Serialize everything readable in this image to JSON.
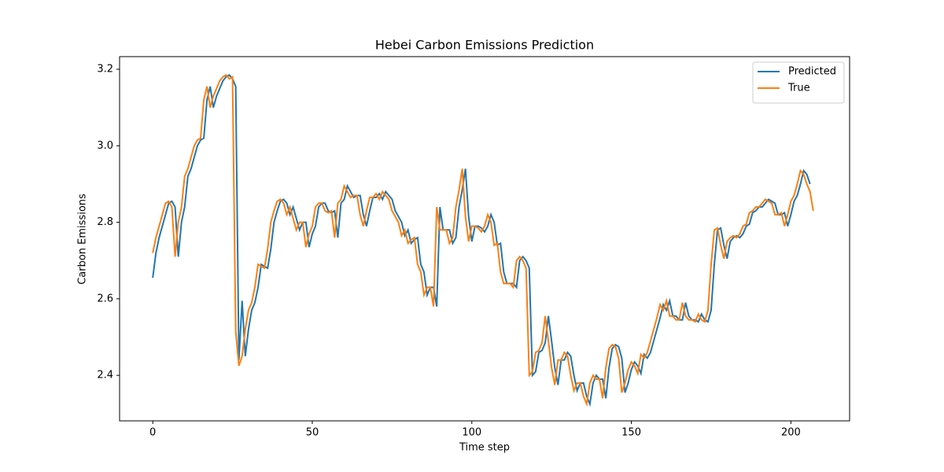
{
  "chart_data": {
    "type": "line",
    "title": "Hebei Carbon Emissions Prediction",
    "x_label": "Time step",
    "y_label": "Carbon Emissions",
    "xlim": [
      -10.4,
      218.4
    ],
    "ylim": [
      2.281,
      3.233
    ],
    "xticks": [
      0,
      50,
      100,
      150,
      200
    ],
    "yticks": [
      2.4,
      2.6,
      2.8,
      {
        "value": 3,
        "label": "3.0"
      },
      3.2
    ],
    "legend": "upper right",
    "grid": false,
    "series": [
      {
        "name": "Predicted",
        "color": "#1f77b4",
        "values": [
          2.655,
          2.72,
          2.76,
          2.79,
          2.82,
          2.85,
          2.855,
          2.84,
          2.71,
          2.8,
          2.84,
          2.92,
          2.94,
          2.97,
          3,
          3.015,
          3.02,
          3.12,
          3.155,
          3.1,
          3.13,
          3.15,
          3.17,
          3.18,
          3.185,
          3.175,
          3.155,
          2.44,
          2.595,
          2.45,
          2.52,
          2.57,
          2.59,
          2.63,
          2.69,
          2.685,
          2.68,
          2.73,
          2.8,
          2.83,
          2.855,
          2.86,
          2.85,
          2.82,
          2.84,
          2.81,
          2.78,
          2.8,
          2.8,
          2.735,
          2.77,
          2.79,
          2.84,
          2.85,
          2.85,
          2.83,
          2.825,
          2.83,
          2.76,
          2.85,
          2.86,
          2.895,
          2.88,
          2.865,
          2.87,
          2.87,
          2.82,
          2.79,
          2.83,
          2.865,
          2.865,
          2.875,
          2.86,
          2.88,
          2.87,
          2.86,
          2.83,
          2.815,
          2.8,
          2.765,
          2.78,
          2.745,
          2.755,
          2.76,
          2.69,
          2.67,
          2.61,
          2.63,
          2.63,
          2.58,
          2.84,
          2.78,
          2.78,
          2.78,
          2.745,
          2.76,
          2.84,
          2.885,
          2.94,
          2.815,
          2.75,
          2.79,
          2.79,
          2.785,
          2.775,
          2.79,
          2.82,
          2.8,
          2.74,
          2.745,
          2.67,
          2.64,
          2.64,
          2.64,
          2.63,
          2.7,
          2.71,
          2.7,
          2.68,
          2.4,
          2.41,
          2.46,
          2.465,
          2.485,
          2.555,
          2.49,
          2.42,
          2.375,
          2.44,
          2.44,
          2.46,
          2.45,
          2.4,
          2.36,
          2.38,
          2.38,
          2.345,
          2.325,
          2.38,
          2.4,
          2.39,
          2.39,
          2.34,
          2.42,
          2.47,
          2.48,
          2.475,
          2.445,
          2.355,
          2.38,
          2.415,
          2.435,
          2.425,
          2.405,
          2.455,
          2.445,
          2.46,
          2.49,
          2.52,
          2.55,
          2.585,
          2.57,
          2.595,
          2.555,
          2.555,
          2.545,
          2.545,
          2.59,
          2.555,
          2.545,
          2.545,
          2.54,
          2.56,
          2.545,
          2.54,
          2.57,
          2.69,
          2.78,
          2.785,
          2.74,
          2.705,
          2.75,
          2.76,
          2.765,
          2.76,
          2.77,
          2.79,
          2.795,
          2.825,
          2.83,
          2.84,
          2.84,
          2.85,
          2.86,
          2.855,
          2.85,
          2.82,
          2.82,
          2.825,
          2.79,
          2.82,
          2.855,
          2.87,
          2.9,
          2.935,
          2.925,
          2.9
        ]
      },
      {
        "name": "True",
        "color": "#ff7f0e",
        "values": [
          2.72,
          2.76,
          2.79,
          2.82,
          2.85,
          2.855,
          2.84,
          2.71,
          2.8,
          2.84,
          2.92,
          2.94,
          2.97,
          3,
          3.015,
          3.02,
          3.12,
          3.155,
          3.1,
          3.13,
          3.15,
          3.17,
          3.18,
          3.185,
          3.175,
          3.18,
          2.515,
          2.425,
          2.45,
          2.52,
          2.57,
          2.59,
          2.63,
          2.69,
          2.685,
          2.68,
          2.73,
          2.8,
          2.83,
          2.855,
          2.86,
          2.85,
          2.82,
          2.84,
          2.81,
          2.78,
          2.8,
          2.8,
          2.735,
          2.77,
          2.79,
          2.84,
          2.85,
          2.85,
          2.83,
          2.825,
          2.83,
          2.76,
          2.85,
          2.86,
          2.895,
          2.88,
          2.865,
          2.87,
          2.87,
          2.82,
          2.79,
          2.83,
          2.865,
          2.865,
          2.875,
          2.86,
          2.88,
          2.87,
          2.86,
          2.83,
          2.815,
          2.8,
          2.765,
          2.78,
          2.745,
          2.755,
          2.76,
          2.69,
          2.67,
          2.61,
          2.63,
          2.63,
          2.58,
          2.84,
          2.78,
          2.78,
          2.78,
          2.745,
          2.76,
          2.84,
          2.885,
          2.94,
          2.815,
          2.75,
          2.79,
          2.79,
          2.785,
          2.775,
          2.79,
          2.82,
          2.8,
          2.74,
          2.745,
          2.67,
          2.64,
          2.64,
          2.64,
          2.63,
          2.7,
          2.71,
          2.7,
          2.68,
          2.4,
          2.41,
          2.46,
          2.465,
          2.485,
          2.555,
          2.49,
          2.42,
          2.375,
          2.44,
          2.44,
          2.46,
          2.45,
          2.4,
          2.36,
          2.38,
          2.38,
          2.345,
          2.325,
          2.38,
          2.4,
          2.39,
          2.39,
          2.34,
          2.42,
          2.47,
          2.48,
          2.475,
          2.445,
          2.355,
          2.38,
          2.415,
          2.435,
          2.425,
          2.405,
          2.455,
          2.445,
          2.46,
          2.49,
          2.52,
          2.55,
          2.585,
          2.57,
          2.595,
          2.555,
          2.555,
          2.545,
          2.545,
          2.59,
          2.555,
          2.545,
          2.545,
          2.54,
          2.56,
          2.545,
          2.54,
          2.57,
          2.69,
          2.78,
          2.785,
          2.74,
          2.705,
          2.75,
          2.76,
          2.765,
          2.76,
          2.77,
          2.79,
          2.795,
          2.825,
          2.83,
          2.84,
          2.84,
          2.85,
          2.86,
          2.855,
          2.85,
          2.82,
          2.82,
          2.825,
          2.79,
          2.82,
          2.855,
          2.87,
          2.9,
          2.935,
          2.925,
          2.9,
          2.88,
          2.83
        ]
      }
    ]
  }
}
